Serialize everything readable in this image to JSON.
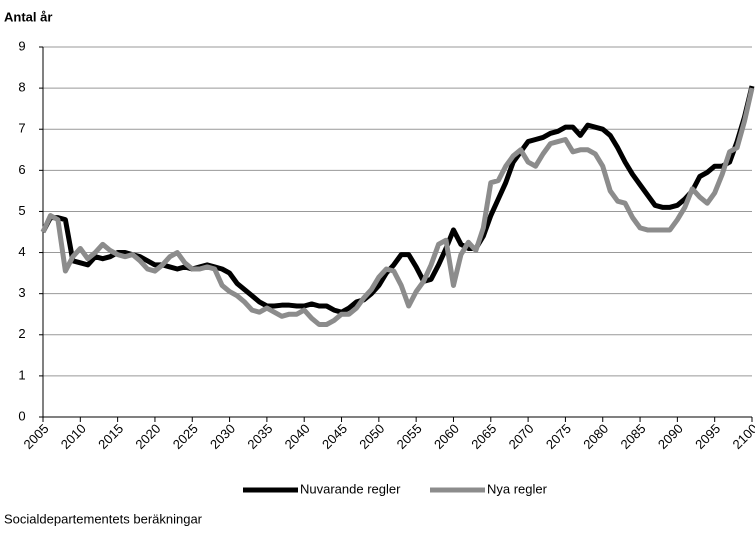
{
  "chart_data": {
    "type": "line",
    "y_label": "Antal år",
    "source": "Socialdepartementets beräkningar",
    "x": [
      2005,
      2006,
      2007,
      2008,
      2009,
      2010,
      2011,
      2012,
      2013,
      2014,
      2015,
      2016,
      2017,
      2018,
      2019,
      2020,
      2021,
      2022,
      2023,
      2024,
      2025,
      2026,
      2027,
      2028,
      2029,
      2030,
      2031,
      2032,
      2033,
      2034,
      2035,
      2036,
      2037,
      2038,
      2039,
      2040,
      2041,
      2042,
      2043,
      2044,
      2045,
      2046,
      2047,
      2048,
      2049,
      2050,
      2051,
      2052,
      2053,
      2054,
      2055,
      2056,
      2057,
      2058,
      2059,
      2060,
      2061,
      2062,
      2063,
      2064,
      2065,
      2066,
      2067,
      2068,
      2069,
      2070,
      2071,
      2072,
      2073,
      2074,
      2075,
      2076,
      2077,
      2078,
      2079,
      2080,
      2081,
      2082,
      2083,
      2084,
      2085,
      2086,
      2087,
      2088,
      2089,
      2090,
      2091,
      2092,
      2093,
      2094,
      2095,
      2096,
      2097,
      2098,
      2099,
      2100
    ],
    "series": [
      {
        "name": "Nuvarande regler",
        "color": "#000000",
        "values": [
          4.5,
          4.85,
          4.85,
          4.8,
          3.8,
          3.75,
          3.7,
          3.9,
          3.85,
          3.9,
          4.0,
          4.0,
          3.95,
          3.9,
          3.8,
          3.7,
          3.7,
          3.65,
          3.6,
          3.65,
          3.6,
          3.65,
          3.7,
          3.65,
          3.6,
          3.5,
          3.25,
          3.1,
          2.95,
          2.8,
          2.7,
          2.7,
          2.72,
          2.72,
          2.7,
          2.7,
          2.75,
          2.7,
          2.7,
          2.6,
          2.55,
          2.65,
          2.8,
          2.85,
          3.0,
          3.2,
          3.5,
          3.7,
          3.95,
          3.95,
          3.65,
          3.3,
          3.35,
          3.7,
          4.1,
          4.55,
          4.2,
          4.1,
          4.1,
          4.4,
          4.9,
          5.3,
          5.7,
          6.2,
          6.45,
          6.7,
          6.75,
          6.8,
          6.9,
          6.95,
          7.05,
          7.05,
          6.85,
          7.1,
          7.05,
          7.0,
          6.85,
          6.55,
          6.2,
          5.9,
          5.65,
          5.4,
          5.15,
          5.1,
          5.1,
          5.15,
          5.3,
          5.5,
          5.85,
          5.95,
          6.1,
          6.1,
          6.2,
          6.7,
          7.3,
          8.05
        ]
      },
      {
        "name": "Nya regler",
        "color": "#8c8c8c",
        "values": [
          4.5,
          4.9,
          4.8,
          3.55,
          3.9,
          4.1,
          3.85,
          4.0,
          4.2,
          4.05,
          3.95,
          3.9,
          3.95,
          3.8,
          3.6,
          3.55,
          3.7,
          3.9,
          4.0,
          3.75,
          3.6,
          3.6,
          3.65,
          3.6,
          3.2,
          3.05,
          2.95,
          2.8,
          2.6,
          2.55,
          2.65,
          2.55,
          2.45,
          2.5,
          2.5,
          2.6,
          2.4,
          2.25,
          2.25,
          2.35,
          2.5,
          2.5,
          2.65,
          2.9,
          3.1,
          3.4,
          3.6,
          3.55,
          3.2,
          2.7,
          3.05,
          3.3,
          3.7,
          4.2,
          4.3,
          3.2,
          3.95,
          4.25,
          4.05,
          4.6,
          5.7,
          5.75,
          6.1,
          6.35,
          6.5,
          6.2,
          6.1,
          6.4,
          6.65,
          6.7,
          6.75,
          6.45,
          6.5,
          6.5,
          6.4,
          6.1,
          5.5,
          5.25,
          5.2,
          4.85,
          4.6,
          4.55,
          4.55,
          4.55,
          4.55,
          4.8,
          5.1,
          5.55,
          5.35,
          5.2,
          5.45,
          5.9,
          6.45,
          6.55,
          7.2,
          8.0
        ]
      }
    ],
    "xlim": [
      2005,
      2100
    ],
    "xticks": [
      2005,
      2010,
      2015,
      2020,
      2025,
      2030,
      2035,
      2040,
      2045,
      2050,
      2055,
      2060,
      2065,
      2070,
      2075,
      2080,
      2085,
      2090,
      2095,
      2100
    ],
    "ylim": [
      0,
      9
    ],
    "yticks": [
      0,
      1,
      2,
      3,
      4,
      5,
      6,
      7,
      8,
      9
    ],
    "grid": true,
    "legend": "bottom"
  }
}
